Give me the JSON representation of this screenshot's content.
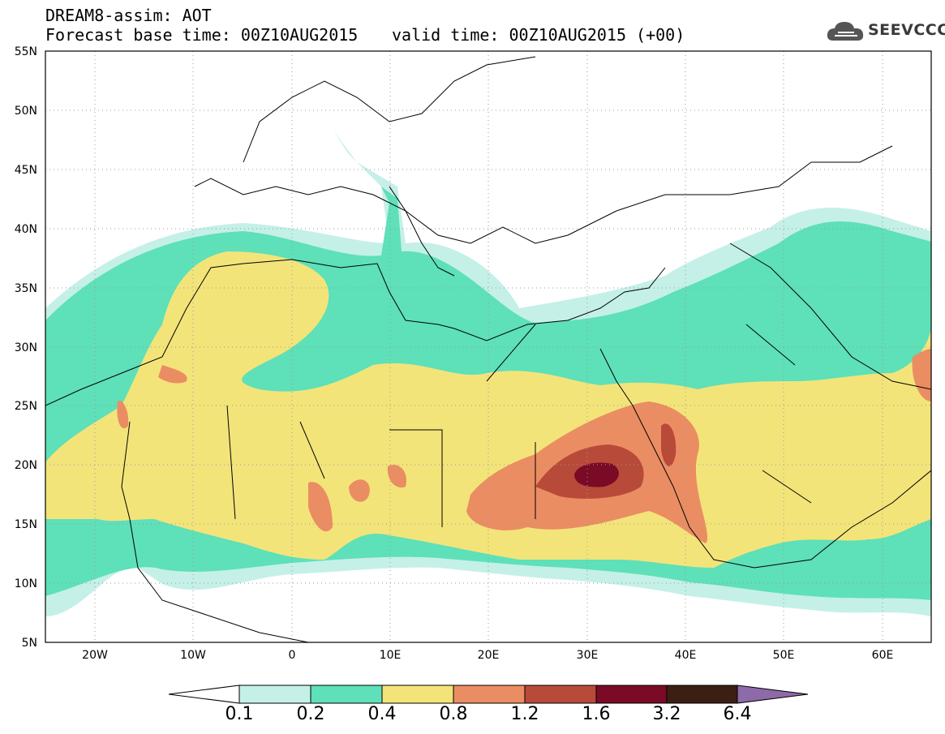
{
  "title": {
    "line1": "DREAM8-assim: AOT",
    "base": "Forecast base time: 00Z10AUG2015",
    "valid": "valid time: 00Z10AUG2015 (+00)"
  },
  "logo": {
    "text": "SEEVCCC",
    "icon": "cloud-icon"
  },
  "axes": {
    "lat_labels": [
      "55N",
      "50N",
      "45N",
      "40N",
      "35N",
      "30N",
      "25N",
      "20N",
      "15N",
      "10N",
      "5N"
    ],
    "lon_labels": [
      "20W",
      "10W",
      "0",
      "10E",
      "20E",
      "30E",
      "40E",
      "50E",
      "60E"
    ],
    "lat_range": [
      5,
      55
    ],
    "lon_range": [
      -25,
      65
    ],
    "grid": "dotted"
  },
  "colorbar": {
    "levels": [
      "0.1",
      "0.2",
      "0.4",
      "0.8",
      "1.2",
      "1.6",
      "3.2",
      "6.4"
    ],
    "colors": [
      "#c4f0e8",
      "#5ee0b9",
      "#f3e47a",
      "#eb8d62",
      "#b84a3a",
      "#7a0a25",
      "#3a1f12",
      "#8d6aa8"
    ]
  }
}
